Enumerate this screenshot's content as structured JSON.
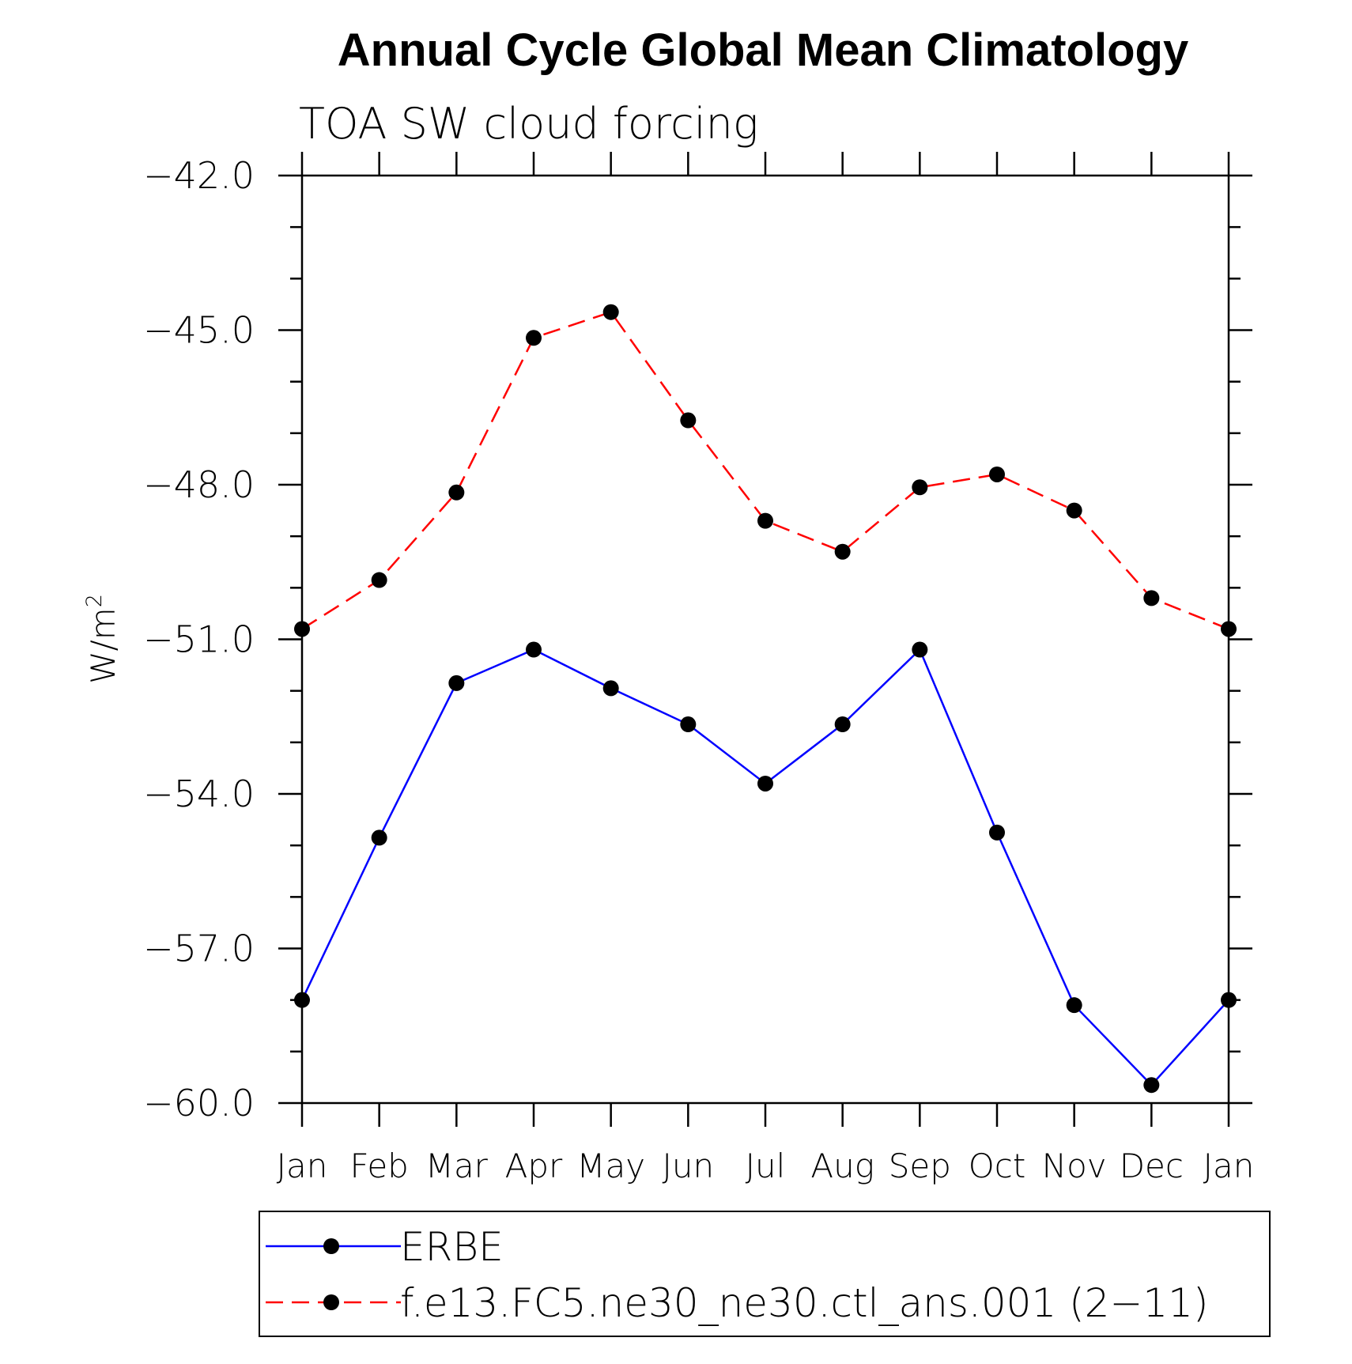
{
  "chart_data": {
    "type": "line",
    "title": "Annual Cycle Global Mean Climatology",
    "subtitle": "TOA SW cloud forcing",
    "ylabel": "W/m",
    "ylabel_sup": "2",
    "xlabel": "",
    "categories": [
      "Jan",
      "Feb",
      "Mar",
      "Apr",
      "May",
      "Jun",
      "Jul",
      "Aug",
      "Sep",
      "Oct",
      "Nov",
      "Dec",
      "Jan"
    ],
    "ylim": [
      -60.0,
      -42.0
    ],
    "yticks": [
      "-42.0",
      "-45.0",
      "-48.0",
      "-51.0",
      "-54.0",
      "-57.0",
      "-60.0"
    ],
    "grid": false,
    "legend_position": "bottom",
    "series": [
      {
        "name": "ERBE",
        "color": "#0000ff",
        "dash": "solid",
        "marker": "filled-circle",
        "values": [
          -58.0,
          -54.85,
          -51.85,
          -51.2,
          -51.95,
          -52.65,
          -53.8,
          -52.65,
          -51.2,
          -54.75,
          -58.1,
          -59.65,
          -58.0
        ]
      },
      {
        "name": "f.e13.FC5.ne30_ne30.ctl_ans.001 (2−11)",
        "color": "#ff0000",
        "dash": "dashed",
        "marker": "filled-circle",
        "values": [
          -50.8,
          -49.85,
          -48.15,
          -45.15,
          -44.65,
          -46.75,
          -48.7,
          -49.3,
          -48.05,
          -47.8,
          -48.5,
          -50.2,
          -50.8
        ]
      }
    ]
  }
}
